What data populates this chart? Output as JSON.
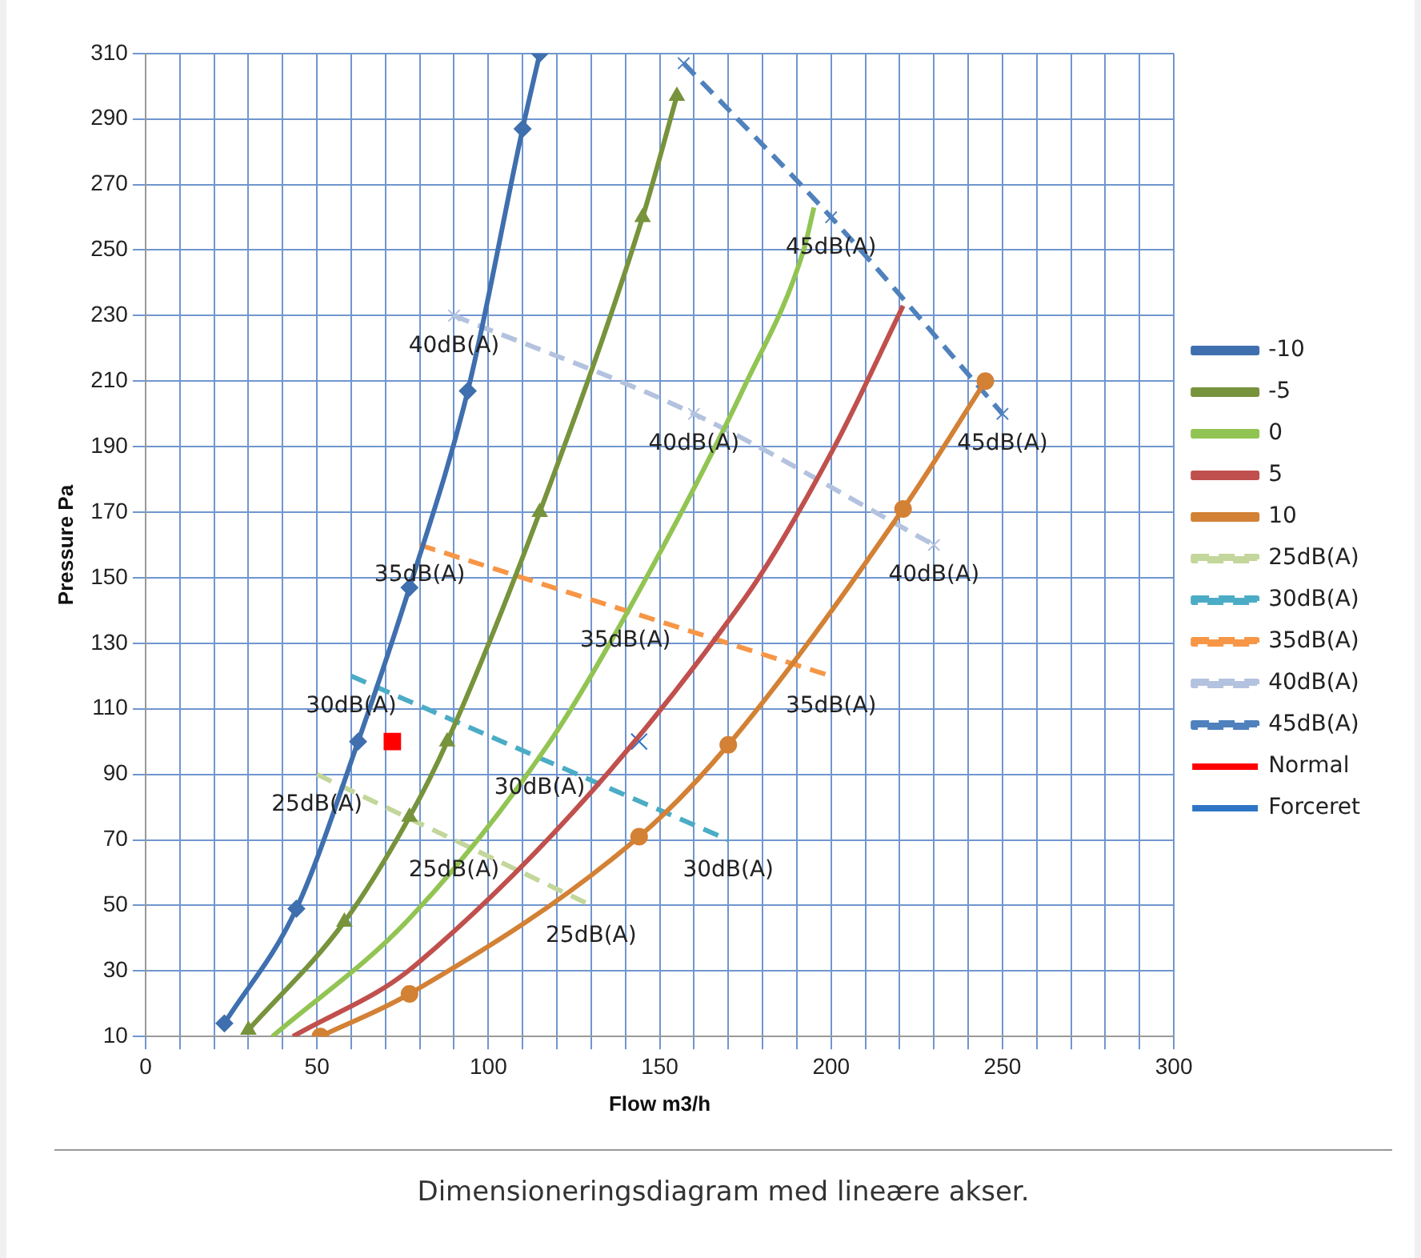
{
  "chart_data": {
    "type": "line",
    "xlabel": "Flow m3/h",
    "ylabel": "Pressure Pa",
    "xlim": [
      0,
      300
    ],
    "xticks": [
      0,
      {
        "value": 10,
        "label": null
      },
      {
        "value": 20,
        "label": null
      },
      {
        "value": 30,
        "label": null
      },
      {
        "value": 40,
        "label": null
      },
      50,
      {
        "value": 60,
        "label": null
      },
      {
        "value": 70,
        "label": null
      },
      {
        "value": 80,
        "label": null
      },
      {
        "value": 90,
        "label": null
      },
      100,
      {
        "value": 110,
        "label": null
      },
      {
        "value": 120,
        "label": null
      },
      {
        "value": 130,
        "label": null
      },
      {
        "value": 140,
        "label": null
      },
      150,
      {
        "value": 160,
        "label": null
      },
      {
        "value": 170,
        "label": null
      },
      {
        "value": 180,
        "label": null
      },
      {
        "value": 190,
        "label": null
      },
      200,
      {
        "value": 210,
        "label": null
      },
      {
        "value": 220,
        "label": null
      },
      {
        "value": 230,
        "label": null
      },
      {
        "value": 240,
        "label": null
      },
      250,
      {
        "value": 260,
        "label": null
      },
      {
        "value": 270,
        "label": null
      },
      {
        "value": 280,
        "label": null
      },
      {
        "value": 290,
        "label": null
      },
      300
    ],
    "ylim": [
      10,
      310
    ],
    "yticks": [
      10,
      30,
      50,
      70,
      90,
      110,
      130,
      150,
      170,
      190,
      210,
      230,
      250,
      270,
      290,
      310
    ],
    "grid": true,
    "legend": "right",
    "series": [
      {
        "name": "-10",
        "color": "#3f6fae",
        "marker": "diamond",
        "line_style": "solid",
        "x": [
          23,
          44,
          62,
          77,
          94,
          110,
          115
        ],
        "values": [
          14,
          49,
          100,
          147,
          207,
          287,
          310
        ]
      },
      {
        "name": "-5",
        "color": "#77933c",
        "marker": "triangle",
        "line_style": "solid",
        "x": [
          30,
          58,
          77,
          88,
          115,
          145,
          155
        ],
        "values": [
          12,
          45,
          77,
          100,
          170,
          260,
          297
        ]
      },
      {
        "name": "0",
        "color": "#92c453",
        "marker": "none",
        "line_style": "solid",
        "x": [
          37,
          77,
          118,
          144,
          175,
          192,
          195
        ],
        "values": [
          10,
          46,
          100,
          146,
          209,
          250,
          263
        ]
      },
      {
        "name": "5",
        "color": "#c0504d",
        "marker": "none",
        "line_style": "solid",
        "x": [
          43,
          79,
          175,
          201,
          221
        ],
        "values": [
          10,
          32,
          144,
          190,
          233
        ]
      },
      {
        "name": "10",
        "color": "#d38135",
        "marker": "circle",
        "line_style": "solid",
        "x": [
          51,
          77,
          144,
          170,
          221,
          245
        ],
        "values": [
          10,
          23,
          71,
          99,
          171,
          210
        ]
      },
      {
        "name": "25dB(A)",
        "color": "#c3d69b",
        "marker": "none",
        "line_style": "dashed",
        "x": [
          50,
          90,
          130
        ],
        "values": [
          90,
          70,
          50
        ]
      },
      {
        "name": "30dB(A)",
        "color": "#4bacc6",
        "marker": "none",
        "line_style": "dashed",
        "x": [
          60,
          115,
          170
        ],
        "values": [
          120,
          95,
          70
        ]
      },
      {
        "name": "35dB(A)",
        "color": "#f79646",
        "marker": "none",
        "line_style": "dashed",
        "x": [
          80,
          140,
          200
        ],
        "values": [
          160,
          140,
          120
        ]
      },
      {
        "name": "40dB(A)",
        "color": "#b3c2de",
        "marker": "cross",
        "line_style": "dashed",
        "x": [
          90,
          160,
          230
        ],
        "values": [
          230,
          200,
          160
        ]
      },
      {
        "name": "45dB(A)",
        "color": "#4f81bd",
        "marker": "cross",
        "line_style": "dashed",
        "x": [
          157,
          200,
          250
        ],
        "values": [
          307,
          260,
          200
        ]
      },
      {
        "name": "Normal",
        "type": "scatter",
        "color": "#ff0000",
        "marker": "square",
        "x": [
          72
        ],
        "values": [
          100
        ]
      },
      {
        "name": "Forceret",
        "type": "scatter",
        "color": "#2e75c7",
        "marker": "cross",
        "x": [
          144
        ],
        "values": [
          100
        ]
      }
    ],
    "annotations": [
      {
        "text": "25dB(A)",
        "x": 50,
        "y": 90
      },
      {
        "text": "25dB(A)",
        "x": 90,
        "y": 70
      },
      {
        "text": "25dB(A)",
        "x": 130,
        "y": 50
      },
      {
        "text": "30dB(A)",
        "x": 60,
        "y": 120
      },
      {
        "text": "30dB(A)",
        "x": 115,
        "y": 95
      },
      {
        "text": "30dB(A)",
        "x": 170,
        "y": 70
      },
      {
        "text": "35dB(A)",
        "x": 80,
        "y": 160
      },
      {
        "text": "35dB(A)",
        "x": 140,
        "y": 140
      },
      {
        "text": "35dB(A)",
        "x": 200,
        "y": 120
      },
      {
        "text": "40dB(A)",
        "x": 90,
        "y": 230
      },
      {
        "text": "40dB(A)",
        "x": 160,
        "y": 200
      },
      {
        "text": "40dB(A)",
        "x": 230,
        "y": 160
      },
      {
        "text": "45dB(A)",
        "x": 200,
        "y": 260
      },
      {
        "text": "45dB(A)",
        "x": 250,
        "y": 200
      },
      "Dimensioneringsdiagram med lineære akser."
    ]
  }
}
